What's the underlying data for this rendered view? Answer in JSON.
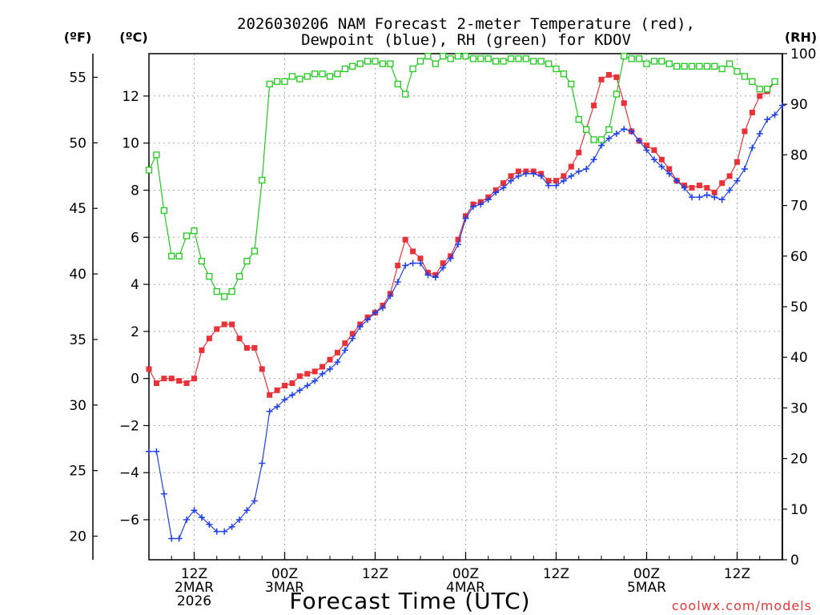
{
  "chart_data": {
    "type": "line",
    "title_line1": "2026030206 NAM Forecast 2-meter Temperature (red),",
    "title_line2": "Dewpoint (blue), RH (green) for KDOV",
    "xlabel": "Forecast Time (UTC)",
    "credit": "coolwx.com/models",
    "unit_f": "(ºF)",
    "unit_c": "(ºC)",
    "unit_rh": "(RH)",
    "x_range_hours": [
      0,
      84
    ],
    "ylim_c": [
      -7.7,
      13.8
    ],
    "ylim_f": [
      18.2,
      56.8
    ],
    "ylim_rh": [
      0,
      100
    ],
    "ticks_c": [
      -6,
      -4,
      -2,
      0,
      2,
      4,
      6,
      8,
      10,
      12
    ],
    "tick_labels_c": [
      "−6",
      "−4",
      "−2",
      "0",
      "2",
      "4",
      "6",
      "8",
      "10",
      "12"
    ],
    "ticks_f": [
      20,
      25,
      30,
      35,
      40,
      45,
      50,
      55
    ],
    "tick_labels_f": [
      "20",
      "25",
      "30",
      "35",
      "40",
      "45",
      "50",
      "55"
    ],
    "ticks_rh": [
      0,
      10,
      20,
      30,
      40,
      50,
      60,
      70,
      80,
      90,
      100
    ],
    "tick_labels_rh": [
      "0",
      "10",
      "20",
      "30",
      "40",
      "50",
      "60",
      "70",
      "80",
      "90",
      "100"
    ],
    "time_ticks": [
      {
        "hour": 6,
        "lines": [
          "12Z",
          "2MAR",
          "2026"
        ]
      },
      {
        "hour": 18,
        "lines": [
          "00Z",
          "3MAR"
        ]
      },
      {
        "hour": 30,
        "lines": [
          "12Z"
        ]
      },
      {
        "hour": 42,
        "lines": [
          "00Z",
          "4MAR"
        ]
      },
      {
        "hour": 54,
        "lines": [
          "12Z"
        ]
      },
      {
        "hour": 66,
        "lines": [
          "00Z",
          "5MAR"
        ]
      },
      {
        "hour": 78,
        "lines": [
          "12Z"
        ]
      }
    ],
    "series": [
      {
        "name": "2-meter Temperature",
        "unit": "C",
        "color": "#e8323a",
        "marker": "filled-square",
        "values": [
          0.4,
          -0.2,
          0.0,
          0.0,
          -0.1,
          -0.2,
          0.0,
          1.2,
          1.7,
          2.1,
          2.3,
          2.3,
          1.7,
          1.3,
          1.3,
          0.4,
          -0.7,
          -0.5,
          -0.3,
          -0.2,
          0.1,
          0.2,
          0.3,
          0.5,
          0.8,
          1.1,
          1.5,
          1.9,
          2.3,
          2.6,
          2.8,
          3.1,
          3.6,
          4.8,
          5.9,
          5.4,
          5.1,
          4.5,
          4.4,
          4.9,
          5.2,
          5.9,
          6.9,
          7.4,
          7.5,
          7.7,
          8.0,
          8.3,
          8.6,
          8.8,
          8.8,
          8.8,
          8.7,
          8.4,
          8.4,
          8.6,
          9.0,
          9.6,
          10.6,
          11.6,
          12.7,
          12.9,
          12.8,
          11.7,
          10.5,
          10.1,
          9.9,
          9.7,
          9.3,
          8.9,
          8.4,
          8.2,
          8.1,
          8.2,
          8.1,
          7.9,
          8.3,
          8.6,
          9.2,
          10.5,
          11.3,
          12.0,
          12.2,
          12.6
        ]
      },
      {
        "name": "Dewpoint",
        "unit": "C",
        "color": "#2040e8",
        "marker": "plus",
        "values": [
          -3.1,
          -3.1,
          -4.9,
          -6.8,
          -6.8,
          -6.0,
          -5.6,
          -5.9,
          -6.2,
          -6.5,
          -6.5,
          -6.3,
          -6.0,
          -5.6,
          -5.2,
          -3.6,
          -1.4,
          -1.2,
          -0.9,
          -0.7,
          -0.5,
          -0.3,
          -0.1,
          0.2,
          0.4,
          0.7,
          1.2,
          1.7,
          2.2,
          2.5,
          2.8,
          3.0,
          3.5,
          4.1,
          4.8,
          4.9,
          4.9,
          4.4,
          4.3,
          4.7,
          5.1,
          5.7,
          6.8,
          7.3,
          7.4,
          7.6,
          7.9,
          8.1,
          8.4,
          8.6,
          8.7,
          8.7,
          8.6,
          8.2,
          8.2,
          8.4,
          8.6,
          8.8,
          8.9,
          9.3,
          9.9,
          10.2,
          10.4,
          10.6,
          10.5,
          10.1,
          9.7,
          9.3,
          9.0,
          8.7,
          8.4,
          8.1,
          7.7,
          7.7,
          7.8,
          7.7,
          7.6,
          8.0,
          8.4,
          8.9,
          9.8,
          10.4,
          11.0,
          11.2,
          11.6
        ]
      },
      {
        "name": "RH",
        "unit": "%",
        "color": "#22c81e",
        "marker": "open-square",
        "values": [
          77,
          80,
          69,
          60,
          60,
          64,
          65,
          59,
          56,
          53,
          52,
          53,
          56,
          59,
          61,
          75,
          94,
          94.5,
          94.5,
          95.5,
          95,
          95.5,
          96,
          96,
          95.5,
          96,
          97,
          97.5,
          98,
          98.5,
          98.5,
          98,
          98,
          94,
          92,
          97,
          98.5,
          99.5,
          98,
          99.5,
          99,
          99.5,
          99.5,
          99,
          99,
          99,
          98.5,
          98.5,
          99,
          99,
          99,
          98.5,
          98.5,
          98,
          97,
          96,
          94,
          87,
          85,
          83,
          83,
          85,
          92,
          99.5,
          99,
          99,
          98,
          98.5,
          98.5,
          98,
          97.5,
          97.5,
          97.5,
          97.5,
          97.5,
          97.5,
          97,
          98,
          96.5,
          95.5,
          94.5,
          93,
          93,
          94.5
        ]
      }
    ]
  }
}
